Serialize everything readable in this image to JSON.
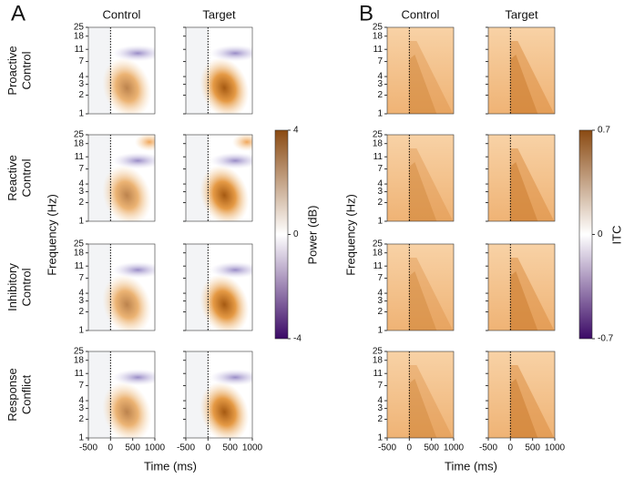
{
  "chart_data": [
    {
      "type": "heatmap",
      "letter": "A",
      "columns": [
        "Control",
        "Target"
      ],
      "rows": [
        [
          "Proactive",
          "Control"
        ],
        [
          "Reactive",
          "Control"
        ],
        [
          "Inhibitory",
          "Control"
        ],
        [
          "Response",
          "Conflict"
        ]
      ],
      "xlabel": "Time (ms)",
      "ylabel": "Frequency (Hz)",
      "xlim": [
        -500,
        1000
      ],
      "xticks": [
        -500,
        0,
        500,
        1000
      ],
      "ylim": [
        1,
        25
      ],
      "yticks": [
        1,
        2,
        3,
        4,
        7,
        11,
        18,
        25
      ],
      "log_y": true,
      "colorbar": {
        "label": "Power (dB)",
        "lim": [
          -4,
          4
        ],
        "ticks": [
          -4,
          0,
          4
        ],
        "colors": [
          "#3b0a66",
          "#ffffff",
          "#8a4a12"
        ]
      }
    },
    {
      "type": "heatmap",
      "letter": "B",
      "columns": [
        "Control",
        "Target"
      ],
      "xlabel": "Time (ms)",
      "ylabel": "Frequency (Hz)",
      "xlim": [
        -500,
        1000
      ],
      "xticks": [
        -500,
        0,
        500,
        1000
      ],
      "ylim": [
        1,
        25
      ],
      "yticks": [
        1,
        2,
        3,
        4,
        7,
        11,
        18,
        25
      ],
      "log_y": true,
      "colorbar": {
        "label": "ITC",
        "lim": [
          -0.7,
          0.7
        ],
        "ticks": [
          -0.7,
          0,
          0.7
        ],
        "colors": [
          "#3b0a66",
          "#ffffff",
          "#8a4a12"
        ]
      }
    }
  ]
}
